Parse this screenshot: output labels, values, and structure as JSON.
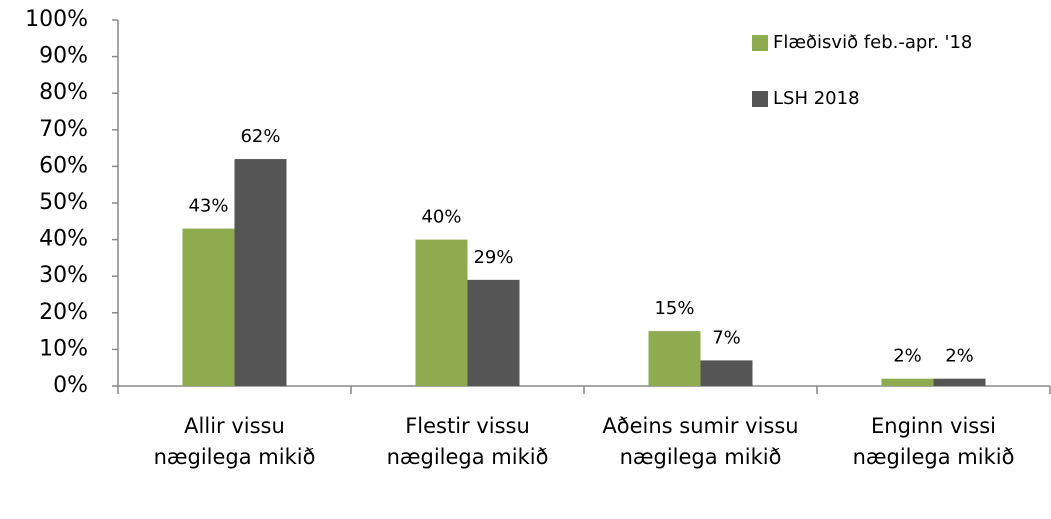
{
  "chart_data": {
    "type": "bar",
    "categories": [
      "Allir vissu nægilega mikið",
      "Flestir vissu nægilega mikið",
      "Aðeins sumir vissu nægilega mikið",
      "Enginn vissi nægilega mikið"
    ],
    "series": [
      {
        "name": "Flæðisvið feb.-apr. '18",
        "color": "#8eab50",
        "values": [
          43,
          40,
          15,
          2
        ],
        "value_labels": [
          "43%",
          "40%",
          "15%",
          "2%"
        ]
      },
      {
        "name": "LSH 2018",
        "color": "#555555",
        "values": [
          62,
          29,
          7,
          2
        ],
        "value_labels": [
          "62%",
          "29%",
          "7%",
          "2%"
        ]
      }
    ],
    "ylim": [
      0,
      100
    ],
    "yticks": [
      {
        "value": 0,
        "label": "0%"
      },
      {
        "value": 10,
        "label": "10%"
      },
      {
        "value": 20,
        "label": "20%"
      },
      {
        "value": 30,
        "label": "30%"
      },
      {
        "value": 40,
        "label": "40%"
      },
      {
        "value": 50,
        "label": "50%"
      },
      {
        "value": 60,
        "label": "60%"
      },
      {
        "value": 70,
        "label": "70%"
      },
      {
        "value": 80,
        "label": "80%"
      },
      {
        "value": 90,
        "label": "90%"
      },
      {
        "value": 100,
        "label": "100%"
      }
    ],
    "grid": false,
    "legend": "top-right"
  }
}
